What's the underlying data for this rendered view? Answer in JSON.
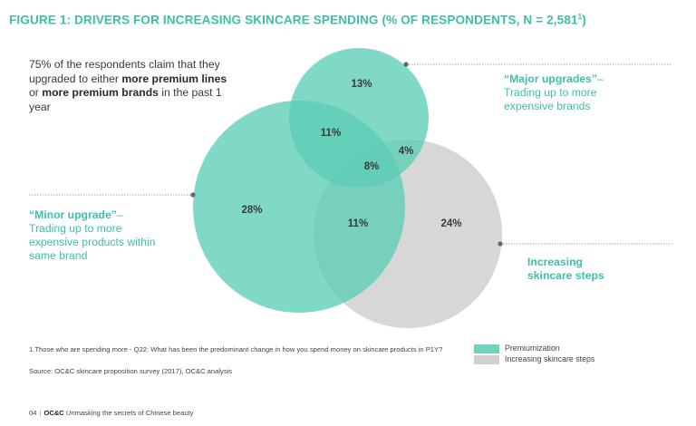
{
  "title": "FIGURE 1: DRIVERS FOR INCREASING SKINCARE SPENDING (% OF RESPONDENTS, N = 2,581",
  "title_superscript": "1",
  "title_close": ")",
  "claim": {
    "part1": "75% of the respondents claim that they upgraded to either ",
    "bold1": "more premium lines",
    "part2": " or ",
    "bold2": "more premium brands",
    "part3": " in the past 1 year"
  },
  "labels": {
    "major_head": "“Major upgrades”",
    "major_dash": "–",
    "major_body": "Trading up to more expensive brands",
    "minor_head": "“Minor upgrade”",
    "minor_dash": "–",
    "minor_body": "Trading up to more expensive products within same brand",
    "steps": "Increasing skincare steps"
  },
  "venn": {
    "colors": {
      "premium": "#5ccdb6",
      "steps": "#d0d0d0",
      "leader": "#666666"
    },
    "regions": {
      "major_only": "13%",
      "major_minor": "11%",
      "major_steps": "4%",
      "all_three": "8%",
      "minor_only": "28%",
      "minor_steps": "11%",
      "steps_only": "24%"
    }
  },
  "footnote": "1.Those who are spending more - Q22: What has been the predominant change in how you spend money on skincare products in P1Y?",
  "source": "Source: OC&C skincare proposition survey (2017), OC&C analysis",
  "legend": [
    {
      "label": "Premiumization",
      "color": "#6fd3c0"
    },
    {
      "label": "Increasing skincare steps",
      "color": "#d0d0d0"
    }
  ],
  "footer": {
    "page": "04",
    "brand": "OC&C",
    "text": "Unmasking the secrets of Chinese beauty"
  }
}
